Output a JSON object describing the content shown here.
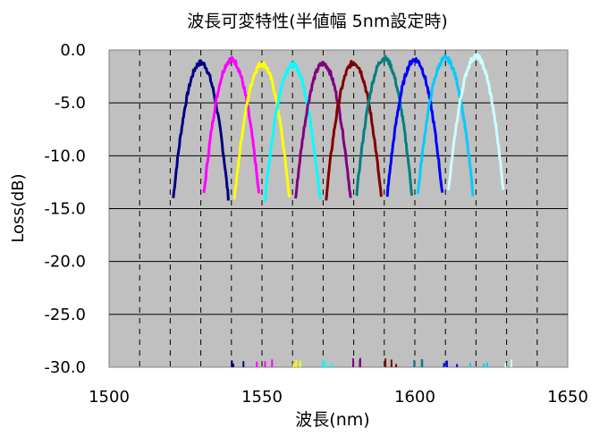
{
  "chart_data": {
    "type": "line",
    "title": "波長可変特性(半値幅 5nm設定時)",
    "xlabel": "波長(nm)",
    "ylabel": "Loss(dB)",
    "xlim": [
      1500,
      1650
    ],
    "ylim": [
      -30,
      0
    ],
    "x_ticks": [
      "1500",
      "1550",
      "1600",
      "1650"
    ],
    "y_ticks": [
      "0.0",
      "-5.0",
      "-10.0",
      "-15.0",
      "-20.0",
      "-25.0",
      "-30.0"
    ],
    "grid": "horizontal solid every 5 dB; vertical dashed every 10 nm",
    "legend": "none",
    "background": "#c0c0c0",
    "series": [
      {
        "color": "#000080",
        "center": 1530,
        "peak": -1.2
      },
      {
        "color": "#ff00ff",
        "center": 1540,
        "peak": -0.9
      },
      {
        "color": "#ffff00",
        "center": 1550,
        "peak": -1.3
      },
      {
        "color": "#00ffff",
        "center": 1560,
        "peak": -1.4
      },
      {
        "color": "#800080",
        "center": 1570,
        "peak": -1.3
      },
      {
        "color": "#800000",
        "center": 1580,
        "peak": -1.2
      },
      {
        "color": "#008080",
        "center": 1590,
        "peak": -0.8
      },
      {
        "color": "#0000ff",
        "center": 1600,
        "peak": -0.9
      },
      {
        "color": "#00ccff",
        "center": 1610,
        "peak": -0.8
      },
      {
        "color": "#ccffff",
        "center": 1620,
        "peak": -0.6
      }
    ]
  }
}
